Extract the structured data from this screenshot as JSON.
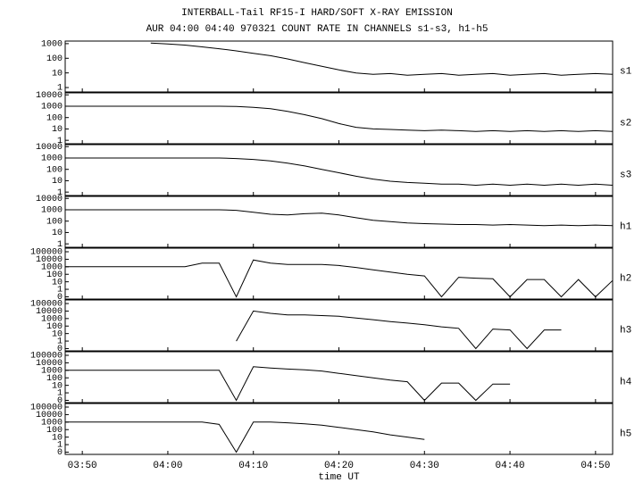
{
  "title": "INTERBALL-Tail RF15-I HARD/SOFT X-RAY EMISSION",
  "subtitle": "AUR 04:00 04:40 970321  COUNT RATE IN CHANNELS s1-s3, h1-h5",
  "chart_data": [
    {
      "type": "line",
      "log_y": true,
      "x": [
        228,
        230,
        232,
        234,
        236,
        238,
        240,
        242,
        244,
        246,
        248,
        250,
        252,
        254,
        256,
        258,
        260,
        262,
        264,
        266,
        268,
        270,
        272,
        274,
        276,
        278,
        280,
        282,
        284,
        286,
        288,
        290,
        292
      ],
      "series": [
        {
          "name": "s1",
          "color": "#000000",
          "values": [
            null,
            null,
            null,
            null,
            null,
            1100,
            950,
            800,
            600,
            450,
            320,
            220,
            150,
            90,
            50,
            28,
            16,
            10,
            8,
            9,
            7,
            8,
            9,
            7,
            8,
            9,
            7,
            8,
            9,
            7,
            8,
            9,
            8
          ]
        }
      ],
      "ylim": [
        0.5,
        1500
      ],
      "yticks": [
        1,
        10,
        100,
        1000
      ]
    },
    {
      "type": "line",
      "log_y": true,
      "x": [
        228,
        230,
        232,
        234,
        236,
        238,
        240,
        242,
        244,
        246,
        248,
        250,
        252,
        254,
        256,
        258,
        260,
        262,
        264,
        266,
        268,
        270,
        272,
        274,
        276,
        278,
        280,
        282,
        284,
        286,
        288,
        290,
        292
      ],
      "series": [
        {
          "name": "s2",
          "color": "#000000",
          "values": [
            1000,
            1000,
            1000,
            1000,
            1000,
            1000,
            1000,
            1000,
            1000,
            1000,
            950,
            800,
            600,
            350,
            180,
            80,
            30,
            14,
            10,
            9,
            8,
            7,
            8,
            7,
            6,
            7,
            6,
            7,
            6,
            7,
            6,
            7,
            6
          ]
        }
      ],
      "ylim": [
        0.5,
        15000
      ],
      "yticks": [
        1,
        10,
        100,
        1000,
        10000
      ]
    },
    {
      "type": "line",
      "log_y": true,
      "x": [
        228,
        230,
        232,
        234,
        236,
        238,
        240,
        242,
        244,
        246,
        248,
        250,
        252,
        254,
        256,
        258,
        260,
        262,
        264,
        266,
        268,
        270,
        272,
        274,
        276,
        278,
        280,
        282,
        284,
        286,
        288,
        290,
        292
      ],
      "series": [
        {
          "name": "s3",
          "color": "#000000",
          "values": [
            1000,
            1000,
            1000,
            1000,
            1000,
            1000,
            1000,
            1000,
            1000,
            1000,
            900,
            750,
            550,
            350,
            200,
            100,
            50,
            25,
            14,
            9,
            7,
            6,
            5,
            5,
            4,
            5,
            4,
            5,
            4,
            5,
            4,
            5,
            4
          ]
        }
      ],
      "ylim": [
        0.5,
        15000
      ],
      "yticks": [
        1,
        10,
        100,
        1000,
        10000
      ]
    },
    {
      "type": "line",
      "log_y": true,
      "x": [
        228,
        230,
        232,
        234,
        236,
        238,
        240,
        242,
        244,
        246,
        248,
        250,
        252,
        254,
        256,
        258,
        260,
        262,
        264,
        266,
        268,
        270,
        272,
        274,
        276,
        278,
        280,
        282,
        284,
        286,
        288,
        290,
        292
      ],
      "series": [
        {
          "name": "h1",
          "color": "#000000",
          "values": [
            1000,
            1000,
            1000,
            1000,
            1000,
            1000,
            1000,
            1000,
            1000,
            1000,
            900,
            600,
            400,
            350,
            450,
            500,
            350,
            200,
            120,
            90,
            70,
            60,
            55,
            50,
            50,
            45,
            50,
            45,
            40,
            45,
            40,
            45,
            40
          ]
        }
      ],
      "ylim": [
        0.5,
        15000
      ],
      "yticks": [
        1,
        10,
        100,
        1000,
        10000
      ]
    },
    {
      "type": "line",
      "log_y": true,
      "x": [
        228,
        230,
        232,
        234,
        236,
        238,
        240,
        242,
        244,
        246,
        248,
        250,
        252,
        254,
        256,
        258,
        260,
        262,
        264,
        266,
        268,
        270,
        272,
        274,
        276,
        278,
        280,
        282,
        284,
        286,
        288,
        290,
        292
      ],
      "series": [
        {
          "name": "h2",
          "color": "#000000",
          "values": [
            1000,
            1000,
            1000,
            1000,
            1000,
            1000,
            1000,
            1000,
            3000,
            3000,
            0.1,
            8000,
            3000,
            2000,
            2000,
            2000,
            1500,
            800,
            400,
            200,
            100,
            60,
            0.1,
            40,
            30,
            25,
            0.1,
            20,
            20,
            0.1,
            20,
            0.1,
            15
          ]
        }
      ],
      "ylim": [
        0.05,
        300000
      ],
      "yticks": [
        {
          "value": 0.1,
          "label": "0"
        },
        1,
        10,
        100,
        1000,
        10000,
        100000
      ]
    },
    {
      "type": "line",
      "log_y": true,
      "x": [
        228,
        230,
        232,
        234,
        236,
        238,
        240,
        242,
        244,
        246,
        248,
        250,
        252,
        254,
        256,
        258,
        260,
        262,
        264,
        266,
        268,
        270,
        272,
        274,
        276,
        278,
        280,
        282,
        284,
        286,
        288,
        290,
        292
      ],
      "series": [
        {
          "name": "h3",
          "color": "#000000",
          "values": [
            null,
            null,
            null,
            null,
            null,
            null,
            null,
            null,
            null,
            null,
            1,
            10000,
            5000,
            3000,
            3000,
            2500,
            2000,
            1200,
            700,
            400,
            250,
            150,
            80,
            50,
            0.1,
            40,
            30,
            0.1,
            30,
            30,
            null,
            null,
            null
          ]
        }
      ],
      "ylim": [
        0.05,
        300000
      ],
      "yticks": [
        {
          "value": 0.1,
          "label": "0"
        },
        1,
        10,
        100,
        1000,
        10000,
        100000
      ]
    },
    {
      "type": "line",
      "log_y": true,
      "x": [
        228,
        230,
        232,
        234,
        236,
        238,
        240,
        242,
        244,
        246,
        248,
        250,
        252,
        254,
        256,
        258,
        260,
        262,
        264,
        266,
        268,
        270,
        272,
        274,
        276,
        278,
        280,
        282,
        284,
        286,
        288,
        290,
        292
      ],
      "series": [
        {
          "name": "h4",
          "color": "#000000",
          "values": [
            1000,
            1000,
            1000,
            1000,
            1000,
            1000,
            1000,
            1000,
            1000,
            1000,
            0.1,
            3000,
            2000,
            1500,
            1200,
            800,
            400,
            200,
            100,
            50,
            30,
            0.1,
            20,
            20,
            0.1,
            15,
            15,
            null,
            null,
            null,
            null,
            null,
            null
          ]
        }
      ],
      "ylim": [
        0.05,
        300000
      ],
      "yticks": [
        {
          "value": 0.1,
          "label": "0"
        },
        1,
        10,
        100,
        1000,
        10000,
        100000
      ]
    },
    {
      "type": "line",
      "log_y": true,
      "x": [
        228,
        230,
        232,
        234,
        236,
        238,
        240,
        242,
        244,
        246,
        248,
        250,
        252,
        254,
        256,
        258,
        260,
        262,
        264,
        266,
        268,
        270,
        272,
        274,
        276,
        278,
        280,
        282,
        284,
        286,
        288,
        290,
        292
      ],
      "series": [
        {
          "name": "h5",
          "color": "#000000",
          "values": [
            1000,
            1000,
            1000,
            1000,
            1000,
            1000,
            1000,
            1000,
            1000,
            500,
            0.1,
            1000,
            1000,
            800,
            600,
            400,
            200,
            100,
            50,
            20,
            10,
            5,
            null,
            null,
            null,
            null,
            null,
            null,
            null,
            null,
            null,
            null,
            null
          ]
        }
      ],
      "ylim": [
        0.05,
        300000
      ],
      "yticks": [
        {
          "value": 0.1,
          "label": "0"
        },
        1,
        10,
        100,
        1000,
        10000,
        100000
      ],
      "xlabel": "time UT",
      "xlim": [
        228,
        292
      ],
      "xticks": [
        {
          "value": 230,
          "label": "03:50"
        },
        {
          "value": 240,
          "label": "04:00"
        },
        {
          "value": 250,
          "label": "04:10"
        },
        {
          "value": 260,
          "label": "04:20"
        },
        {
          "value": 270,
          "label": "04:30"
        },
        {
          "value": 280,
          "label": "04:40"
        },
        {
          "value": 290,
          "label": "04:50"
        }
      ]
    }
  ]
}
